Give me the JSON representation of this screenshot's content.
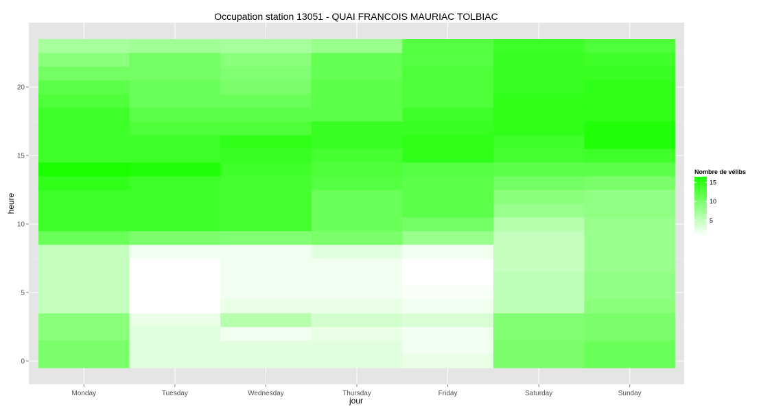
{
  "chart_data": {
    "type": "heatmap",
    "title": "Occupation station 13051 - QUAI FRANCOIS MAURIAC TOLBIAC",
    "xlabel": "jour",
    "ylabel": "heure",
    "x_categories": [
      "Monday",
      "Tuesday",
      "Wednesday",
      "Thursday",
      "Friday",
      "Saturday",
      "Sunday"
    ],
    "y_values": [
      0,
      1,
      2,
      3,
      4,
      5,
      6,
      7,
      8,
      9,
      10,
      11,
      12,
      13,
      14,
      15,
      16,
      17,
      18,
      19,
      20,
      21,
      22,
      23
    ],
    "y_ticks": [
      0,
      5,
      10,
      15,
      20
    ],
    "ylim": [
      -0.5,
      23.5
    ],
    "grid": true,
    "legend": {
      "title": "Nombre de vélibs",
      "ticks": [
        5,
        10,
        15
      ],
      "range": [
        1,
        16.5
      ],
      "position": "right",
      "color_low": "#ffffff",
      "color_high": "#1aff00"
    },
    "values": [
      [
        10,
        3,
        3,
        3,
        2.5,
        10,
        11
      ],
      [
        10,
        3,
        3,
        3,
        2,
        10,
        11
      ],
      [
        9,
        3,
        2,
        2.5,
        2,
        9.5,
        10
      ],
      [
        9,
        2.5,
        6,
        4,
        3.5,
        9.5,
        10
      ],
      [
        5,
        1,
        2.5,
        2.5,
        2,
        5.5,
        9
      ],
      [
        5,
        1,
        2,
        2,
        1.5,
        5.5,
        8.5
      ],
      [
        5,
        1,
        2,
        2,
        1,
        5.5,
        8.5
      ],
      [
        5,
        1,
        2,
        2,
        1,
        5,
        8
      ],
      [
        5,
        2,
        2,
        3,
        2,
        5,
        8
      ],
      [
        11,
        10,
        9.5,
        10,
        8,
        5,
        8
      ],
      [
        14,
        14,
        13.5,
        11,
        10.5,
        6,
        8
      ],
      [
        14,
        14,
        13.5,
        11,
        12,
        8,
        8.5
      ],
      [
        14,
        14,
        13.5,
        11,
        12,
        9,
        8.5
      ],
      [
        15,
        14,
        13.5,
        12.5,
        12,
        10.5,
        10
      ],
      [
        17,
        16,
        14,
        13,
        12.5,
        12,
        12
      ],
      [
        14,
        14,
        14.5,
        13.5,
        15,
        13.5,
        14
      ],
      [
        14,
        14,
        15,
        14.5,
        15,
        14,
        16
      ],
      [
        14,
        13,
        13,
        14.5,
        14.5,
        15,
        16
      ],
      [
        14,
        12,
        12,
        12,
        14,
        15,
        15
      ],
      [
        13,
        11,
        11,
        12,
        13,
        15,
        15
      ],
      [
        12,
        11,
        10,
        12,
        13,
        14.5,
        15
      ],
      [
        10.5,
        10.5,
        9.5,
        11.5,
        13,
        14.5,
        14.5
      ],
      [
        9,
        10.5,
        9,
        11.5,
        12.5,
        14.5,
        14
      ],
      [
        7,
        7.5,
        7,
        8,
        12.5,
        14,
        13
      ]
    ]
  }
}
